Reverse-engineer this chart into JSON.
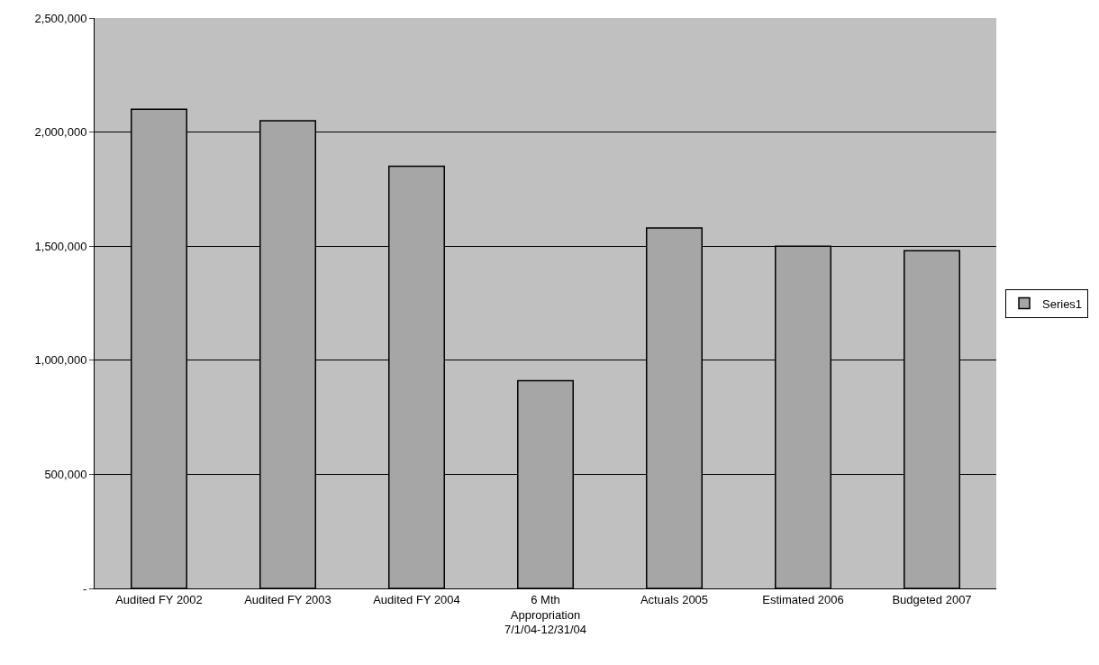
{
  "chart_data": {
    "type": "bar",
    "categories": [
      "Audited FY 2002",
      "Audited FY 2003",
      "Audited FY 2004",
      "6 Mth Appropriation 7/1/04-12/31/04",
      "Actuals 2005",
      "Estimated 2006",
      "Budgeted 2007"
    ],
    "series": [
      {
        "name": "Series1",
        "color": "#a6a6a6",
        "values": [
          2100000,
          2050000,
          1850000,
          910000,
          1580000,
          1500000,
          1480000
        ]
      }
    ],
    "ylim": [
      0,
      2500000
    ],
    "yticks": [
      {
        "value": 0,
        "label": "-"
      },
      {
        "value": 500000,
        "label": "500,000"
      },
      {
        "value": 1000000,
        "label": "1,000,000"
      },
      {
        "value": 1500000,
        "label": "1,500,000"
      },
      {
        "value": 2000000,
        "label": "2,000,000"
      },
      {
        "value": 2500000,
        "label": "2,500,000"
      }
    ],
    "grid": "y",
    "legend": "right"
  }
}
